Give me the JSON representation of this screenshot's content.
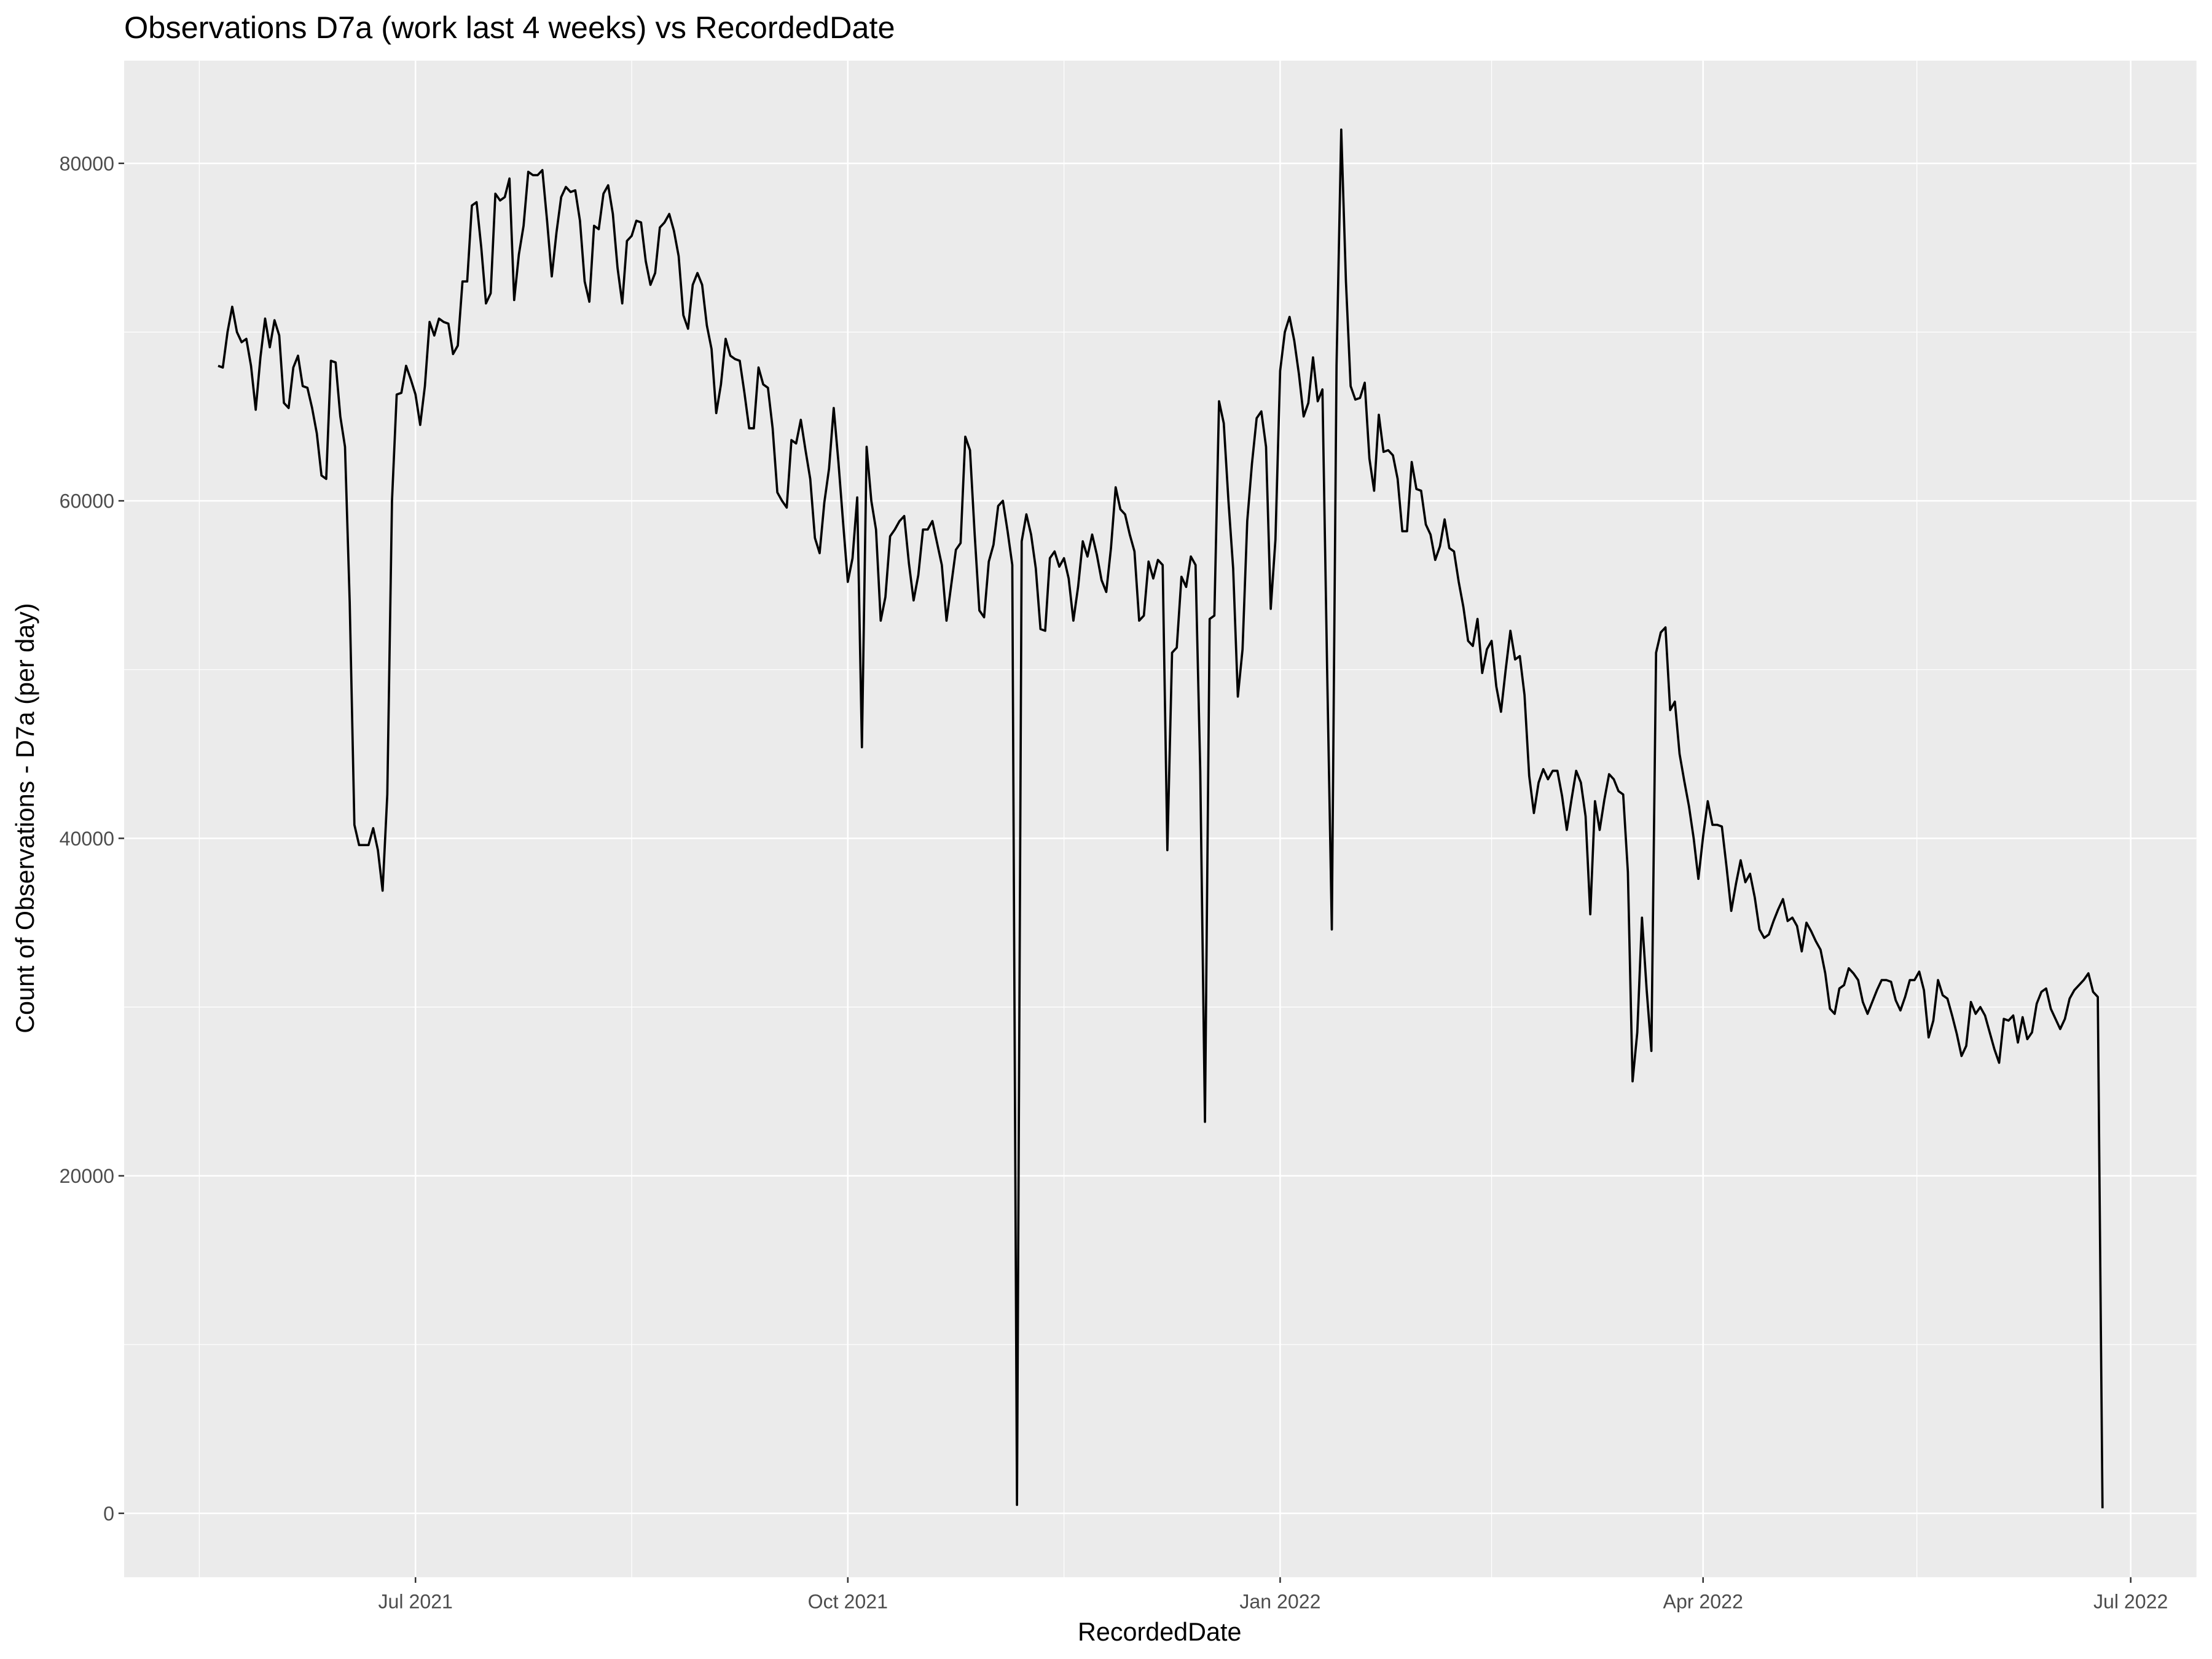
{
  "chart_data": {
    "type": "line",
    "title": "Observations D7a (work last 4 weeks) vs RecordedDate",
    "x_label": "RecordedDate",
    "y_label": "Count of Observations - D7a (per day)",
    "color": "#000000",
    "grid": true,
    "xlim": [
      "2021-04-30",
      "2022-07-15"
    ],
    "xticks": [
      {
        "value": "2021-07-01",
        "label": "Jul 2021"
      },
      {
        "value": "2021-10-01",
        "label": "Oct 2021"
      },
      {
        "value": "2022-01-01",
        "label": "Jan 2022"
      },
      {
        "value": "2022-04-01",
        "label": "Apr 2022"
      },
      {
        "value": "2022-07-01",
        "label": "Jul 2022"
      }
    ],
    "ylim": [
      -3785,
      86085
    ],
    "yticks": [
      0,
      20000,
      40000,
      60000,
      80000
    ],
    "x": [
      "2021-05-20",
      "2021-05-21",
      "2021-05-22",
      "2021-05-23",
      "2021-05-24",
      "2021-05-25",
      "2021-05-26",
      "2021-05-27",
      "2021-05-28",
      "2021-05-29",
      "2021-05-30",
      "2021-05-31",
      "2021-06-01",
      "2021-06-02",
      "2021-06-03",
      "2021-06-04",
      "2021-06-05",
      "2021-06-06",
      "2021-06-07",
      "2021-06-08",
      "2021-06-09",
      "2021-06-10",
      "2021-06-11",
      "2021-06-12",
      "2021-06-13",
      "2021-06-14",
      "2021-06-15",
      "2021-06-16",
      "2021-06-17",
      "2021-06-18",
      "2021-06-19",
      "2021-06-20",
      "2021-06-21",
      "2021-06-22",
      "2021-06-23",
      "2021-06-24",
      "2021-06-25",
      "2021-06-26",
      "2021-06-27",
      "2021-06-28",
      "2021-06-29",
      "2021-06-30",
      "2021-07-01",
      "2021-07-02",
      "2021-07-03",
      "2021-07-04",
      "2021-07-05",
      "2021-07-06",
      "2021-07-07",
      "2021-07-08",
      "2021-07-09",
      "2021-07-10",
      "2021-07-11",
      "2021-07-12",
      "2021-07-13",
      "2021-07-14",
      "2021-07-15",
      "2021-07-16",
      "2021-07-17",
      "2021-07-18",
      "2021-07-19",
      "2021-07-20",
      "2021-07-21",
      "2021-07-22",
      "2021-07-23",
      "2021-07-24",
      "2021-07-25",
      "2021-07-26",
      "2021-07-27",
      "2021-07-28",
      "2021-07-29",
      "2021-07-30",
      "2021-07-31",
      "2021-08-01",
      "2021-08-02",
      "2021-08-03",
      "2021-08-04",
      "2021-08-05",
      "2021-08-06",
      "2021-08-07",
      "2021-08-08",
      "2021-08-09",
      "2021-08-10",
      "2021-08-11",
      "2021-08-12",
      "2021-08-13",
      "2021-08-14",
      "2021-08-15",
      "2021-08-16",
      "2021-08-17",
      "2021-08-18",
      "2021-08-19",
      "2021-08-20",
      "2021-08-21",
      "2021-08-22",
      "2021-08-23",
      "2021-08-24",
      "2021-08-25",
      "2021-08-26",
      "2021-08-27",
      "2021-08-28",
      "2021-08-29",
      "2021-08-30",
      "2021-08-31",
      "2021-09-01",
      "2021-09-02",
      "2021-09-03",
      "2021-09-04",
      "2021-09-05",
      "2021-09-06",
      "2021-09-07",
      "2021-09-08",
      "2021-09-09",
      "2021-09-10",
      "2021-09-11",
      "2021-09-12",
      "2021-09-13",
      "2021-09-14",
      "2021-09-15",
      "2021-09-16",
      "2021-09-17",
      "2021-09-18",
      "2021-09-19",
      "2021-09-20",
      "2021-09-21",
      "2021-09-22",
      "2021-09-23",
      "2021-09-24",
      "2021-09-25",
      "2021-09-26",
      "2021-09-27",
      "2021-09-28",
      "2021-09-29",
      "2021-09-30",
      "2021-10-01",
      "2021-10-02",
      "2021-10-03",
      "2021-10-04",
      "2021-10-05",
      "2021-10-06",
      "2021-10-07",
      "2021-10-08",
      "2021-10-09",
      "2021-10-10",
      "2021-10-11",
      "2021-10-12",
      "2021-10-13",
      "2021-10-14",
      "2021-10-15",
      "2021-10-16",
      "2021-10-17",
      "2021-10-18",
      "2021-10-19",
      "2021-10-20",
      "2021-10-21",
      "2021-10-22",
      "2021-10-23",
      "2021-10-24",
      "2021-10-25",
      "2021-10-26",
      "2021-10-27",
      "2021-10-28",
      "2021-10-29",
      "2021-10-30",
      "2021-10-31",
      "2021-11-01",
      "2021-11-02",
      "2021-11-03",
      "2021-11-04",
      "2021-11-05",
      "2021-11-06",
      "2021-11-07",
      "2021-11-08",
      "2021-11-09",
      "2021-11-10",
      "2021-11-11",
      "2021-11-12",
      "2021-11-13",
      "2021-11-14",
      "2021-11-15",
      "2021-11-16",
      "2021-11-17",
      "2021-11-18",
      "2021-11-19",
      "2021-11-20",
      "2021-11-21",
      "2021-11-22",
      "2021-11-23",
      "2021-11-24",
      "2021-11-25",
      "2021-11-26",
      "2021-11-27",
      "2021-11-28",
      "2021-11-29",
      "2021-11-30",
      "2021-12-01",
      "2021-12-02",
      "2021-12-03",
      "2021-12-04",
      "2021-12-05",
      "2021-12-06",
      "2021-12-07",
      "2021-12-08",
      "2021-12-09",
      "2021-12-10",
      "2021-12-11",
      "2021-12-12",
      "2021-12-13",
      "2021-12-14",
      "2021-12-15",
      "2021-12-16",
      "2021-12-17",
      "2021-12-18",
      "2021-12-19",
      "2021-12-20",
      "2021-12-21",
      "2021-12-22",
      "2021-12-23",
      "2021-12-24",
      "2021-12-25",
      "2021-12-26",
      "2021-12-27",
      "2021-12-28",
      "2021-12-29",
      "2021-12-30",
      "2021-12-31",
      "2022-01-01",
      "2022-01-02",
      "2022-01-03",
      "2022-01-04",
      "2022-01-05",
      "2022-01-06",
      "2022-01-07",
      "2022-01-08",
      "2022-01-09",
      "2022-01-10",
      "2022-01-11",
      "2022-01-12",
      "2022-01-13",
      "2022-01-14",
      "2022-01-15",
      "2022-01-16",
      "2022-01-17",
      "2022-01-18",
      "2022-01-19",
      "2022-01-20",
      "2022-01-21",
      "2022-01-22",
      "2022-01-23",
      "2022-01-24",
      "2022-01-25",
      "2022-01-26",
      "2022-01-27",
      "2022-01-28",
      "2022-01-29",
      "2022-01-30",
      "2022-01-31",
      "2022-02-01",
      "2022-02-02",
      "2022-02-03",
      "2022-02-04",
      "2022-02-05",
      "2022-02-06",
      "2022-02-07",
      "2022-02-08",
      "2022-02-09",
      "2022-02-10",
      "2022-02-11",
      "2022-02-12",
      "2022-02-13",
      "2022-02-14",
      "2022-02-15",
      "2022-02-16",
      "2022-02-17",
      "2022-02-18",
      "2022-02-19",
      "2022-02-20",
      "2022-02-21",
      "2022-02-22",
      "2022-02-23",
      "2022-02-24",
      "2022-02-25",
      "2022-02-26",
      "2022-02-27",
      "2022-02-28",
      "2022-03-01",
      "2022-03-02",
      "2022-03-03",
      "2022-03-04",
      "2022-03-05",
      "2022-03-06",
      "2022-03-07",
      "2022-03-08",
      "2022-03-09",
      "2022-03-10",
      "2022-03-11",
      "2022-03-12",
      "2022-03-13",
      "2022-03-14",
      "2022-03-15",
      "2022-03-16",
      "2022-03-17",
      "2022-03-18",
      "2022-03-19",
      "2022-03-20",
      "2022-03-21",
      "2022-03-22",
      "2022-03-23",
      "2022-03-24",
      "2022-03-25",
      "2022-03-26",
      "2022-03-27",
      "2022-03-28",
      "2022-03-29",
      "2022-03-30",
      "2022-03-31",
      "2022-04-01",
      "2022-04-02",
      "2022-04-03",
      "2022-04-04",
      "2022-04-05",
      "2022-04-06",
      "2022-04-07",
      "2022-04-08",
      "2022-04-09",
      "2022-04-10",
      "2022-04-11",
      "2022-04-12",
      "2022-04-13",
      "2022-04-14",
      "2022-04-15",
      "2022-04-16",
      "2022-04-17",
      "2022-04-18",
      "2022-04-19",
      "2022-04-20",
      "2022-04-21",
      "2022-04-22",
      "2022-04-23",
      "2022-04-24",
      "2022-04-25",
      "2022-04-26",
      "2022-04-27",
      "2022-04-28",
      "2022-04-29",
      "2022-04-30",
      "2022-05-01",
      "2022-05-02",
      "2022-05-03",
      "2022-05-04",
      "2022-05-05",
      "2022-05-06",
      "2022-05-07",
      "2022-05-08",
      "2022-05-09",
      "2022-05-10",
      "2022-05-11",
      "2022-05-12",
      "2022-05-13",
      "2022-05-14",
      "2022-05-15",
      "2022-05-16",
      "2022-05-17",
      "2022-05-18",
      "2022-05-19",
      "2022-05-20",
      "2022-05-21",
      "2022-05-22",
      "2022-05-23",
      "2022-05-24",
      "2022-05-25",
      "2022-05-26",
      "2022-05-27",
      "2022-05-28",
      "2022-05-29",
      "2022-05-30",
      "2022-05-31",
      "2022-06-01",
      "2022-06-02",
      "2022-06-03",
      "2022-06-04",
      "2022-06-05",
      "2022-06-06",
      "2022-06-07",
      "2022-06-08",
      "2022-06-09",
      "2022-06-10",
      "2022-06-11",
      "2022-06-12",
      "2022-06-13",
      "2022-06-14",
      "2022-06-15",
      "2022-06-16",
      "2022-06-17",
      "2022-06-18",
      "2022-06-19",
      "2022-06-20",
      "2022-06-21",
      "2022-06-22",
      "2022-06-23",
      "2022-06-24",
      "2022-06-25"
    ],
    "values": [
      68000,
      67900,
      70000,
      71500,
      70000,
      69400,
      69600,
      68000,
      65400,
      68500,
      70800,
      69100,
      70700,
      69800,
      65800,
      65500,
      67900,
      68600,
      66800,
      66700,
      65500,
      64000,
      61500,
      61300,
      68300,
      68200,
      65000,
      63200,
      54000,
      40800,
      39600,
      39600,
      39600,
      40600,
      39300,
      36900,
      42600,
      60000,
      66300,
      66400,
      68000,
      67200,
      66300,
      64500,
      66800,
      70600,
      69800,
      70800,
      70600,
      70500,
      68700,
      69200,
      73000,
      73000,
      77500,
      77700,
      75000,
      71700,
      72300,
      78200,
      77800,
      78000,
      79100,
      71900,
      74600,
      76300,
      79500,
      79300,
      79300,
      79600,
      76600,
      73300,
      75900,
      78000,
      78600,
      78300,
      78400,
      76600,
      73000,
      71800,
      76300,
      76100,
      78200,
      78700,
      77000,
      73800,
      71700,
      75400,
      75700,
      76600,
      76500,
      74200,
      72800,
      73500,
      76200,
      76500,
      77000,
      76000,
      74500,
      71000,
      70200,
      72800,
      73500,
      72800,
      70400,
      69000,
      65200,
      66900,
      69600,
      68600,
      68400,
      68300,
      66400,
      64300,
      64300,
      67900,
      66900,
      66700,
      64300,
      60500,
      60000,
      59600,
      63600,
      63400,
      64800,
      63000,
      61300,
      57800,
      56900,
      59900,
      61900,
      65500,
      62300,
      58700,
      55200,
      56600,
      60200,
      45400,
      63200,
      60000,
      58300,
      52900,
      54300,
      57900,
      58300,
      58800,
      59100,
      56300,
      54100,
      55600,
      58300,
      58300,
      58800,
      57500,
      56200,
      52900,
      55000,
      57100,
      57500,
      63800,
      63000,
      58000,
      53500,
      53100,
      56400,
      57400,
      59700,
      60000,
      58200,
      56200,
      500,
      57600,
      59200,
      58000,
      56000,
      52400,
      52300,
      56600,
      57000,
      56100,
      56600,
      55400,
      52900,
      54900,
      57600,
      56700,
      58000,
      56800,
      55300,
      54600,
      57200,
      60800,
      59500,
      59200,
      58000,
      57000,
      52900,
      53200,
      56400,
      55400,
      56500,
      56200,
      39300,
      51000,
      51300,
      55500,
      54900,
      56700,
      56200,
      44000,
      23200,
      53000,
      53200,
      65900,
      64600,
      60000,
      56000,
      48400,
      51200,
      58800,
      62200,
      64900,
      65300,
      63200,
      53600,
      57700,
      67700,
      70000,
      70900,
      69500,
      67500,
      65000,
      65800,
      68500,
      65900,
      66600,
      50000,
      34600,
      68000,
      82000,
      73000,
      66800,
      66000,
      66100,
      67000,
      62500,
      60600,
      65100,
      62900,
      63000,
      62700,
      61300,
      58200,
      58200,
      62300,
      60700,
      60600,
      58600,
      58000,
      56500,
      57300,
      58900,
      57200,
      57000,
      55200,
      53700,
      51700,
      51400,
      53000,
      49800,
      51200,
      51700,
      49000,
      47500,
      50000,
      52300,
      50600,
      50800,
      48500,
      43700,
      41500,
      43300,
      44100,
      43500,
      44000,
      44000,
      42500,
      40500,
      42300,
      44000,
      43300,
      41300,
      35500,
      42200,
      40500,
      42300,
      43800,
      43500,
      42800,
      42600,
      38000,
      25600,
      28500,
      35300,
      31000,
      27400,
      51000,
      52200,
      52500,
      47600,
      48100,
      45000,
      43400,
      41900,
      40000,
      37600,
      40100,
      42200,
      40800,
      40800,
      40700,
      38300,
      35700,
      37300,
      38700,
      37400,
      37900,
      36500,
      34600,
      34100,
      34300,
      35100,
      35800,
      36400,
      35100,
      35300,
      34800,
      33300,
      35000,
      34500,
      33900,
      33400,
      32000,
      29900,
      29600,
      31100,
      31300,
      32300,
      32000,
      31600,
      30300,
      29600,
      30300,
      31000,
      31600,
      31600,
      31500,
      30400,
      29800,
      30600,
      31600,
      31600,
      32100,
      31000,
      28200,
      29200,
      31600,
      30700,
      30500,
      29500,
      28400,
      27100,
      27700,
      30300,
      29600,
      30000,
      29500,
      28500,
      27500,
      26700,
      29300,
      29200,
      29500,
      27900,
      29400,
      28100,
      28500,
      30200,
      30900,
      31100,
      29900,
      29300,
      28700,
      29300,
      30500,
      31000,
      31300,
      31600,
      32000,
      30900,
      30600,
      300
    ]
  }
}
